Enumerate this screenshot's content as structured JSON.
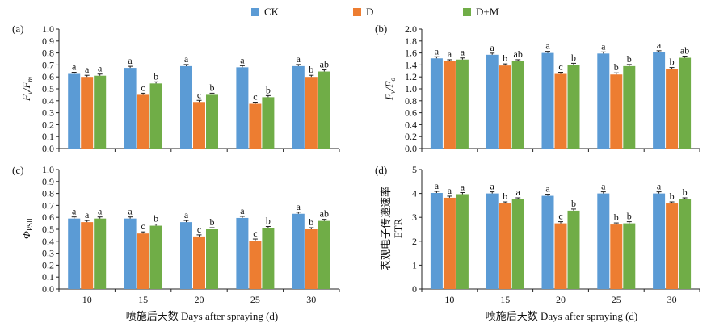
{
  "legend": [
    {
      "name": "CK",
      "color": "#5b9bd5"
    },
    {
      "name": "D",
      "color": "#ed7d31"
    },
    {
      "name": "D+M",
      "color": "#70ad47"
    }
  ],
  "x_axis_label": "喷施后天数 Days after spraying (d)",
  "chart_data": [
    {
      "type": "bar",
      "panel": "(a)",
      "ylabel_main": "F",
      "ylabel_sub1": "v",
      "ylabel_mid": "/F",
      "ylabel_sub2": "m",
      "ylim": [
        0,
        1.0
      ],
      "yticks": [
        "0.0",
        "0.1",
        "0.2",
        "0.3",
        "0.4",
        "0.5",
        "0.6",
        "0.7",
        "0.8",
        "0.9",
        "1.0"
      ],
      "categories": [
        "10",
        "15",
        "20",
        "25",
        "30"
      ],
      "series": [
        {
          "name": "CK",
          "values": [
            0.625,
            0.675,
            0.69,
            0.68,
            0.69
          ],
          "labels": [
            "a",
            "a",
            "a",
            "a",
            "a"
          ]
        },
        {
          "name": "D",
          "values": [
            0.6,
            0.45,
            0.39,
            0.375,
            0.6
          ],
          "labels": [
            "a",
            "c",
            "c",
            "c",
            "b"
          ]
        },
        {
          "name": "D+M",
          "values": [
            0.61,
            0.545,
            0.45,
            0.43,
            0.645
          ],
          "labels": [
            "a",
            "b",
            "b",
            "b",
            "ab"
          ]
        }
      ]
    },
    {
      "type": "bar",
      "panel": "(b)",
      "ylabel_main": "F",
      "ylabel_sub1": "v",
      "ylabel_mid": "/F",
      "ylabel_sub2": "o",
      "ylim": [
        0,
        2.0
      ],
      "yticks": [
        "0.0",
        "0.2",
        "0.4",
        "0.6",
        "0.8",
        "1.0",
        "1.2",
        "1.4",
        "1.6",
        "1.8",
        "2.0"
      ],
      "categories": [
        "10",
        "15",
        "20",
        "25",
        "30"
      ],
      "series": [
        {
          "name": "CK",
          "values": [
            1.51,
            1.57,
            1.6,
            1.59,
            1.61
          ],
          "labels": [
            "a",
            "a",
            "a",
            "a",
            "a"
          ]
        },
        {
          "name": "D",
          "values": [
            1.46,
            1.39,
            1.25,
            1.24,
            1.33
          ],
          "labels": [
            "a",
            "b",
            "c",
            "b",
            "b"
          ]
        },
        {
          "name": "D+M",
          "values": [
            1.49,
            1.46,
            1.4,
            1.38,
            1.52
          ],
          "labels": [
            "a",
            "ab",
            "b",
            "b",
            "ab"
          ]
        }
      ]
    },
    {
      "type": "bar",
      "panel": "(c)",
      "ylabel_main": "Φ",
      "ylabel_sub1": "PSII",
      "ylim": [
        0,
        1.0
      ],
      "yticks": [
        "0.0",
        "0.1",
        "0.2",
        "0.3",
        "0.4",
        "0.5",
        "0.6",
        "0.7",
        "0.8",
        "0.9",
        "1.0"
      ],
      "categories": [
        "10",
        "15",
        "20",
        "25",
        "30"
      ],
      "series": [
        {
          "name": "CK",
          "values": [
            0.59,
            0.59,
            0.56,
            0.595,
            0.63
          ],
          "labels": [
            "a",
            "a",
            "a",
            "a",
            "a"
          ]
        },
        {
          "name": "D",
          "values": [
            0.56,
            0.465,
            0.44,
            0.405,
            0.5
          ],
          "labels": [
            "a",
            "c",
            "c",
            "c",
            "b"
          ]
        },
        {
          "name": "D+M",
          "values": [
            0.59,
            0.53,
            0.5,
            0.51,
            0.57
          ],
          "labels": [
            "a",
            "b",
            "b",
            "b",
            "ab"
          ]
        }
      ]
    },
    {
      "type": "bar",
      "panel": "(d)",
      "ylabel_line1": "表观电子传递速率",
      "ylabel_line2": "ETR",
      "ylim": [
        0,
        5
      ],
      "yticks": [
        "0",
        "1",
        "2",
        "3",
        "4",
        "5"
      ],
      "categories": [
        "10",
        "15",
        "20",
        "25",
        "30"
      ],
      "series": [
        {
          "name": "CK",
          "values": [
            4.02,
            4.0,
            3.9,
            4.0,
            4.0
          ],
          "labels": [
            "a",
            "a",
            "a",
            "a",
            "a"
          ]
        },
        {
          "name": "D",
          "values": [
            3.82,
            3.58,
            2.75,
            2.7,
            3.58
          ],
          "labels": [
            "a",
            "b",
            "c",
            "b",
            "b"
          ]
        },
        {
          "name": "D+M",
          "values": [
            3.97,
            3.75,
            3.28,
            2.75,
            3.75
          ],
          "labels": [
            "a",
            "a",
            "b",
            "b",
            "b"
          ]
        }
      ]
    }
  ]
}
